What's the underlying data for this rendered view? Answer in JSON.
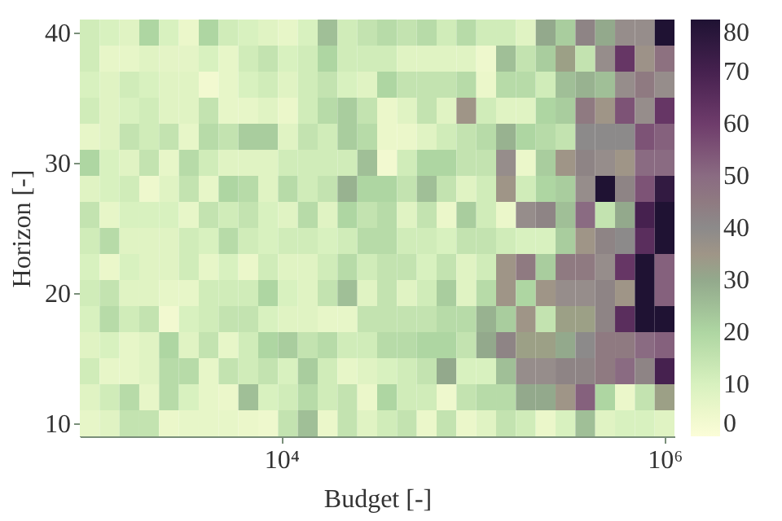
{
  "chart_data": {
    "type": "heatmap",
    "xlabel": "Budget [-]",
    "ylabel": "Horizon [-]",
    "log": "x",
    "x": [
      1000,
      1269,
      1610,
      2043,
      2593,
      3290,
      4175,
      5298,
      6723,
      8532,
      10826,
      13738,
      17433,
      22122,
      28072,
      35622,
      45204,
      57362,
      72790,
      92367,
      117210,
      148735,
      188739,
      239503,
      303920,
      385662,
      489390,
      621017,
      788046,
      1000000
    ],
    "xlim": [
      888,
      1126000
    ],
    "xticks": [
      {
        "value": 10000,
        "label": "10⁴"
      },
      {
        "value": 1000000,
        "label": "10⁶"
      }
    ],
    "ylim": [
      9,
      41
    ],
    "yticks": [
      10,
      20,
      30,
      40
    ],
    "clim": [
      0,
      80
    ],
    "cticks": [
      0,
      10,
      20,
      30,
      40,
      50,
      60,
      70,
      80
    ],
    "cells": [
      [
        12,
        10,
        8,
        20,
        10,
        5,
        20,
        12,
        10,
        8,
        6,
        10,
        25,
        12,
        15,
        18,
        15,
        18,
        12,
        18,
        12,
        12,
        8,
        30,
        22,
        42,
        30,
        38,
        38,
        80
      ],
      [
        12,
        6,
        6,
        8,
        7,
        7,
        10,
        6,
        12,
        15,
        10,
        12,
        20,
        12,
        12,
        12,
        8,
        8,
        8,
        8,
        4,
        25,
        15,
        22,
        32,
        15,
        38,
        62,
        36,
        48
      ],
      [
        10,
        8,
        12,
        10,
        8,
        8,
        3,
        6,
        10,
        12,
        8,
        12,
        15,
        10,
        8,
        20,
        15,
        15,
        15,
        18,
        5,
        18,
        18,
        12,
        25,
        28,
        25,
        38,
        45,
        38
      ],
      [
        12,
        8,
        10,
        12,
        8,
        8,
        15,
        6,
        6,
        8,
        5,
        12,
        18,
        22,
        15,
        5,
        8,
        15,
        8,
        35,
        12,
        8,
        8,
        20,
        22,
        45,
        35,
        55,
        38,
        62
      ],
      [
        6,
        8,
        15,
        12,
        15,
        6,
        18,
        15,
        22,
        22,
        8,
        15,
        12,
        22,
        18,
        5,
        5,
        8,
        12,
        15,
        18,
        28,
        20,
        18,
        15,
        40,
        40,
        40,
        55,
        52
      ],
      [
        20,
        10,
        8,
        15,
        6,
        18,
        12,
        8,
        8,
        8,
        12,
        12,
        12,
        12,
        25,
        3,
        12,
        20,
        20,
        15,
        15,
        38,
        5,
        22,
        35,
        42,
        38,
        35,
        50,
        50
      ],
      [
        8,
        10,
        12,
        4,
        8,
        15,
        6,
        20,
        18,
        8,
        18,
        12,
        15,
        28,
        20,
        20,
        15,
        25,
        15,
        8,
        12,
        35,
        12,
        20,
        22,
        38,
        80,
        42,
        55,
        75
      ],
      [
        15,
        6,
        10,
        10,
        10,
        6,
        15,
        12,
        15,
        10,
        8,
        18,
        8,
        20,
        15,
        18,
        8,
        15,
        5,
        22,
        12,
        5,
        38,
        42,
        25,
        50,
        15,
        30,
        70,
        80
      ],
      [
        12,
        18,
        8,
        8,
        8,
        12,
        10,
        18,
        12,
        10,
        12,
        12,
        10,
        12,
        18,
        18,
        12,
        12,
        10,
        15,
        15,
        12,
        10,
        10,
        22,
        35,
        42,
        40,
        65,
        80
      ],
      [
        10,
        5,
        10,
        8,
        8,
        12,
        6,
        10,
        5,
        12,
        8,
        8,
        12,
        18,
        12,
        15,
        15,
        10,
        15,
        8,
        12,
        35,
        45,
        22,
        45,
        45,
        38,
        62,
        80,
        52
      ],
      [
        12,
        15,
        8,
        8,
        6,
        6,
        12,
        12,
        12,
        20,
        10,
        8,
        15,
        25,
        8,
        15,
        8,
        12,
        22,
        8,
        18,
        35,
        20,
        35,
        38,
        38,
        42,
        35,
        80,
        52
      ],
      [
        10,
        18,
        12,
        15,
        3,
        10,
        12,
        15,
        15,
        10,
        8,
        8,
        6,
        6,
        15,
        15,
        15,
        15,
        18,
        18,
        28,
        22,
        35,
        15,
        32,
        32,
        42,
        65,
        80,
        80
      ],
      [
        8,
        10,
        6,
        8,
        20,
        8,
        15,
        6,
        12,
        20,
        22,
        15,
        18,
        12,
        12,
        18,
        18,
        20,
        20,
        15,
        30,
        42,
        32,
        32,
        30,
        40,
        45,
        45,
        50,
        52
      ],
      [
        12,
        6,
        6,
        8,
        18,
        18,
        6,
        15,
        12,
        15,
        10,
        22,
        12,
        6,
        8,
        10,
        12,
        15,
        30,
        10,
        10,
        25,
        38,
        38,
        42,
        42,
        45,
        50,
        42,
        70
      ],
      [
        8,
        12,
        18,
        6,
        18,
        10,
        6,
        5,
        25,
        10,
        12,
        18,
        12,
        15,
        5,
        20,
        12,
        12,
        4,
        15,
        18,
        18,
        30,
        30,
        35,
        52,
        20,
        5,
        15,
        32
      ],
      [
        6,
        8,
        15,
        15,
        5,
        6,
        6,
        6,
        5,
        4,
        15,
        25,
        5,
        15,
        8,
        12,
        15,
        5,
        15,
        5,
        8,
        15,
        12,
        5,
        10,
        25,
        8,
        10,
        10,
        8
      ]
    ]
  }
}
